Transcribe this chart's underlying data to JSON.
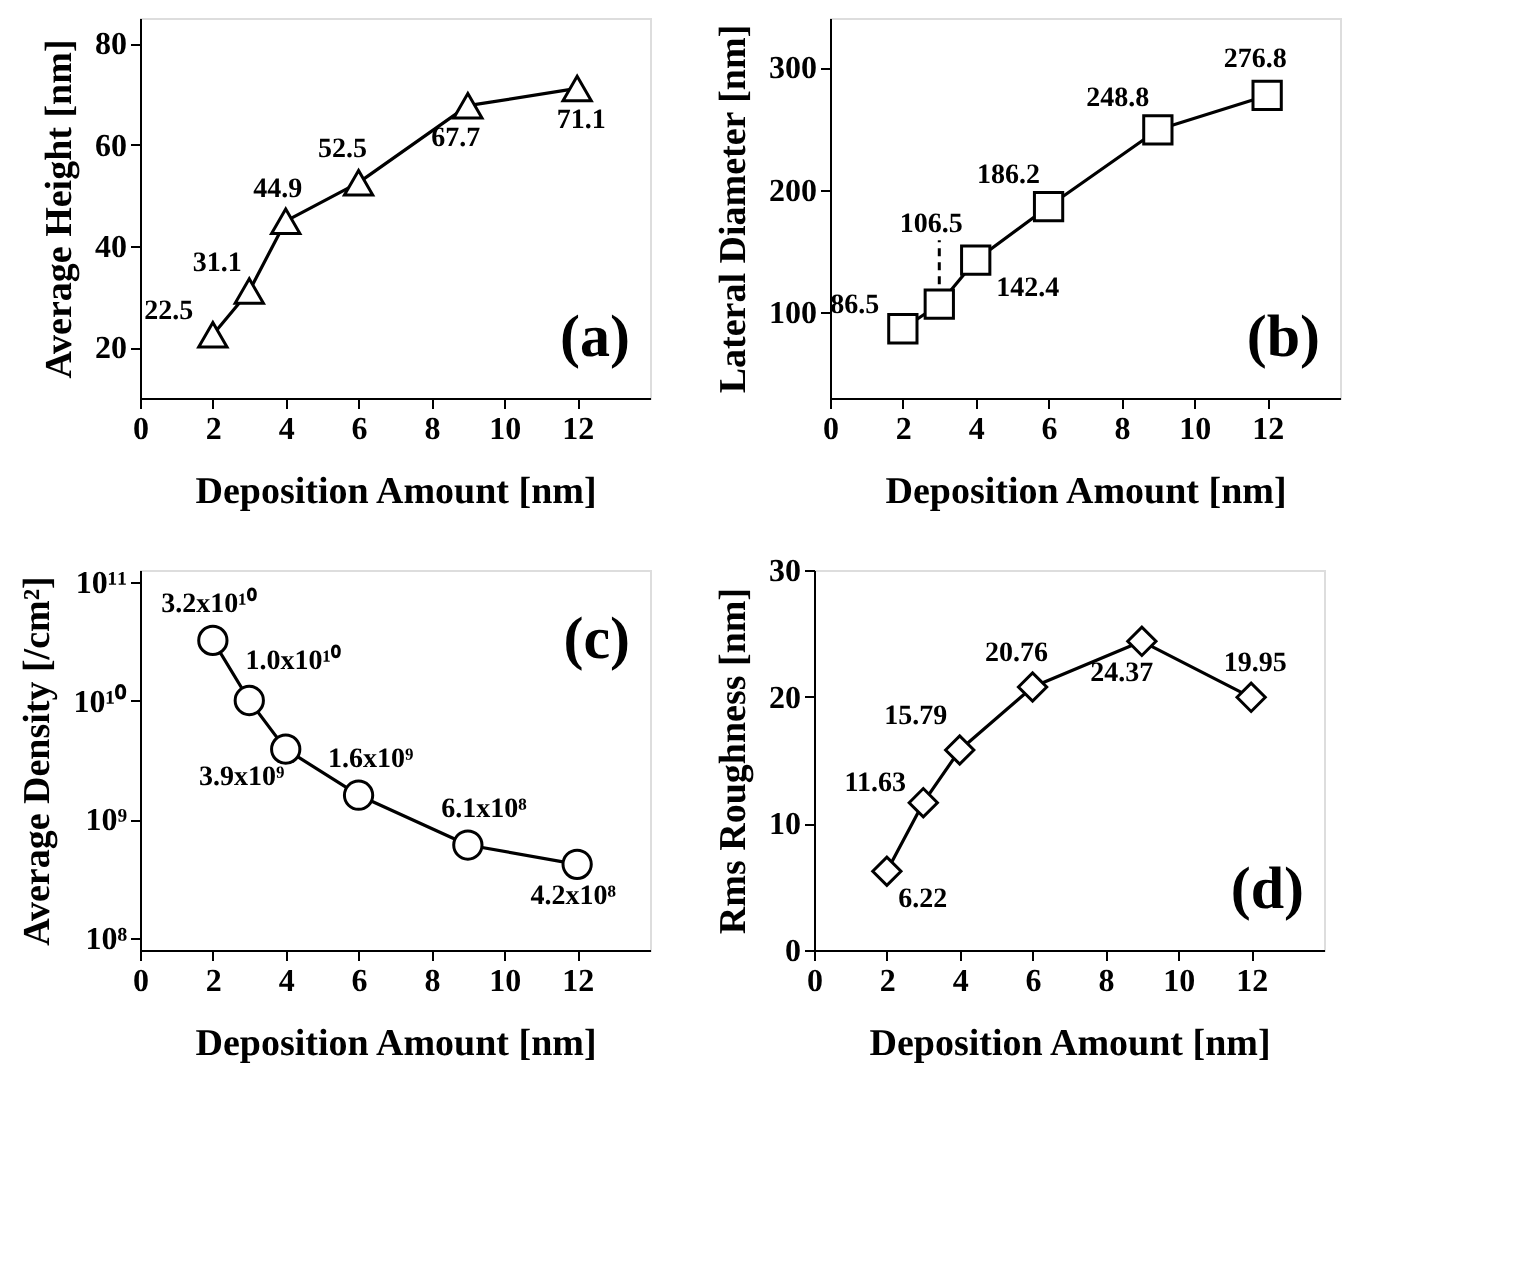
{
  "chart_data": [
    {
      "type": "line",
      "xlabel": "Deposition Amount [nm]",
      "ylabel": "Average Height [nm]",
      "x": [
        2,
        3,
        4,
        6,
        9,
        12
      ],
      "series": [
        {
          "color": "#000000",
          "values": [
            22.5,
            31.1,
            44.9,
            52.5,
            67.7,
            71.1
          ]
        }
      ],
      "xlim": [
        0,
        14
      ],
      "xticks": [
        0,
        2,
        4,
        6,
        8,
        10,
        12
      ],
      "ylim": [
        10,
        85
      ],
      "yticks": [
        20,
        40,
        60,
        80
      ],
      "marker": "triangle",
      "data_labels": true,
      "grid": false,
      "annotations": [
        "(a)"
      ]
    },
    {
      "type": "line",
      "xlabel": "Deposition Amount [nm]",
      "ylabel": "Lateral Diameter [nm]",
      "x": [
        2,
        3,
        4,
        6,
        9,
        12
      ],
      "series": [
        {
          "color": "#000000",
          "values": [
            86.5,
            106.5,
            142.4,
            186.2,
            248.8,
            276.8
          ]
        }
      ],
      "xlim": [
        0,
        14
      ],
      "xticks": [
        0,
        2,
        4,
        6,
        8,
        10,
        12
      ],
      "ylim": [
        30,
        340
      ],
      "yticks": [
        100,
        200,
        300
      ],
      "marker": "square",
      "data_labels": true,
      "grid": false,
      "annotations": [
        "(b)"
      ]
    },
    {
      "type": "line",
      "xlabel": "Deposition Amount [nm]",
      "ylabel": "Average Density [/cm²]",
      "x": [
        2,
        3,
        4,
        6,
        9,
        12
      ],
      "series": [
        {
          "color": "#000000",
          "values": [
            32000000000.0,
            10000000000.0,
            3900000000.0,
            1600000000.0,
            610000000.0,
            420000000.0
          ],
          "value_labels": [
            "3.2x10¹⁰",
            "1.0x10¹⁰",
            "3.9x10⁹",
            "1.6x10⁹",
            "6.1x10⁸",
            "4.2x10⁸"
          ]
        }
      ],
      "xlim": [
        0,
        14
      ],
      "xticks": [
        0,
        2,
        4,
        6,
        8,
        10,
        12
      ],
      "ylim": [
        80000000.0,
        125000000000.0
      ],
      "log": "y",
      "yticks": [
        {
          "value": 100000000.0,
          "label": "10⁸"
        },
        {
          "value": 1000000000.0,
          "label": "10⁹"
        },
        {
          "value": 10000000000.0,
          "label": "10¹⁰"
        },
        {
          "value": 100000000000.0,
          "label": "10¹¹"
        }
      ],
      "marker": "circle",
      "grid": false,
      "annotations": [
        "(c)"
      ]
    },
    {
      "type": "line",
      "xlabel": "Deposition Amount [nm]",
      "ylabel": "Rms Roughness [nm]",
      "x": [
        2,
        3,
        4,
        6,
        9,
        12
      ],
      "series": [
        {
          "color": "#000000",
          "values": [
            6.22,
            11.63,
            15.79,
            20.76,
            24.37,
            19.95
          ]
        }
      ],
      "xlim": [
        0,
        14
      ],
      "xticks": [
        0,
        2,
        4,
        6,
        8,
        10,
        12
      ],
      "ylim": [
        0,
        30
      ],
      "yticks": [
        0,
        10,
        20,
        30
      ],
      "marker": "diamond",
      "data_labels": true,
      "grid": false,
      "annotations": [
        "(d)"
      ]
    }
  ]
}
